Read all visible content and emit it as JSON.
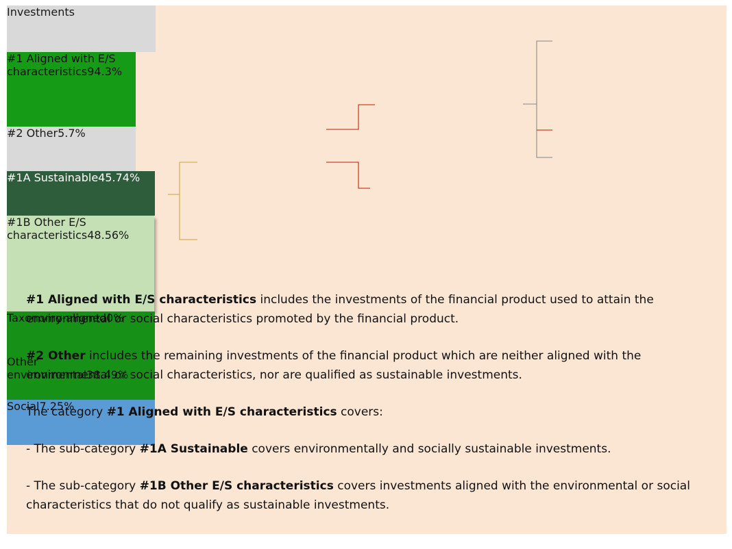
{
  "nodes": [
    {
      "label": "Investments"
    },
    {
      "label": "#1 Aligned with E/S characteristics",
      "value": "94.3%"
    },
    {
      "label": "#2 Other",
      "value": "5.7%"
    },
    {
      "label": "#1A Sustainable",
      "value": "45.74%"
    },
    {
      "label": "#1B Other E/S characteristics",
      "value": "48.56%"
    },
    {
      "label": "Taxonomy-aligned",
      "value": "0%"
    },
    {
      "label": "Other environmental",
      "value": "38.49%"
    },
    {
      "label": "Social",
      "value": "7.25%"
    }
  ],
  "notes": [
    [
      {
        "text": "#1 Aligned with E/S characteristics",
        "bold": true
      },
      {
        "text": " includes the investments of the financial product used to attain the environmental or social characteristics promoted by the financial product."
      }
    ],
    [
      {
        "text": "#2 Other",
        "bold": true
      },
      {
        "text": " includes the remaining investments of the financial product which are neither aligned with the environmental or social characteristics, nor are qualified as sustainable investments."
      }
    ],
    [
      {
        "text": "The category "
      },
      {
        "text": "#1 Aligned with E/S characteristics",
        "bold": true
      },
      {
        "text": " covers:"
      }
    ],
    [
      {
        "text": "- The sub-category "
      },
      {
        "text": "#1A Sustainable",
        "bold": true
      },
      {
        "text": " covers environmentally and socially sustainable investments."
      }
    ],
    [
      {
        "text": "- The sub-category "
      },
      {
        "text": "#1B Other E/S characteristics",
        "bold": true
      },
      {
        "text": " covers investments aligned with the environmental or social characteristics that do not qualify as sustainable investments."
      }
    ]
  ]
}
